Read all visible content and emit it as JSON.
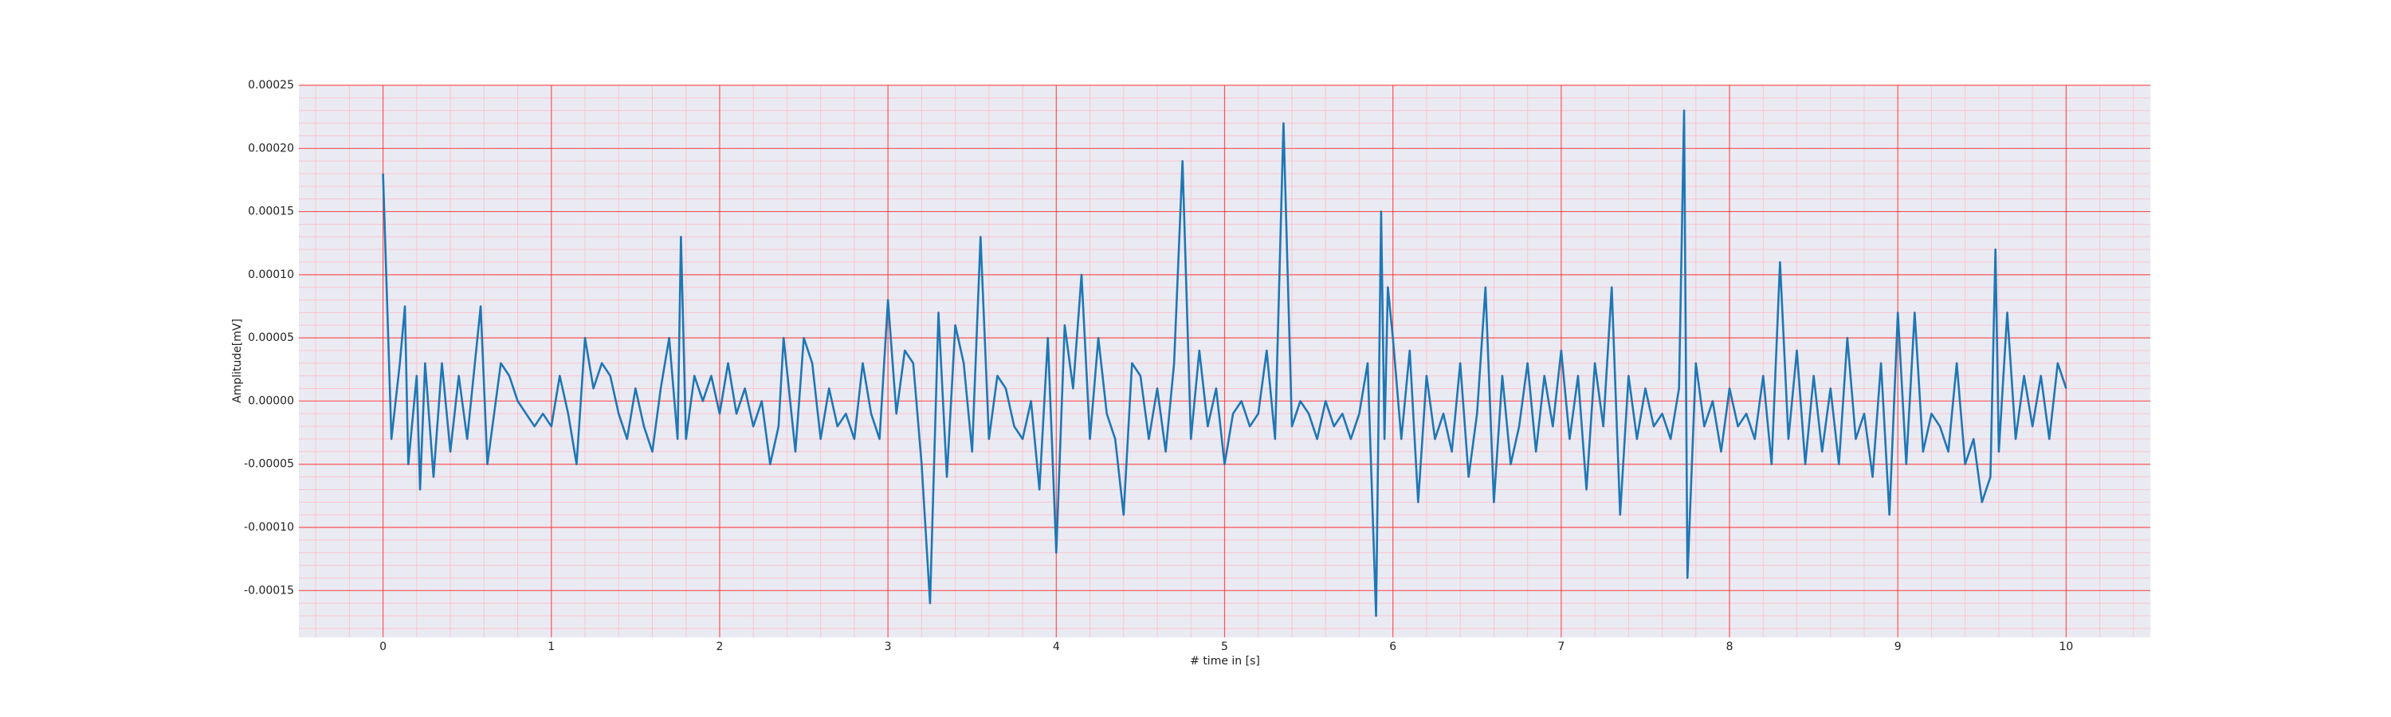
{
  "chart_data": {
    "type": "line",
    "xlabel": "# time in [s]",
    "ylabel": "Amplitude[mV]",
    "color": "#1f77b4",
    "grid": true,
    "minor_grid": true,
    "xlim": [
      -0.5,
      10.5
    ],
    "xticks": [
      0,
      1,
      2,
      3,
      4,
      5,
      6,
      7,
      8,
      9,
      10
    ],
    "ylim": [
      -0.000187,
      0.00025
    ],
    "yticks": [
      {
        "value": -0.00015,
        "label": "-0.00015"
      },
      {
        "value": -0.0001,
        "label": "-0.00010"
      },
      {
        "value": -5e-05,
        "label": "-0.00005"
      },
      {
        "value": 0,
        "label": "0.00000"
      },
      {
        "value": 5e-05,
        "label": "0.00005"
      },
      {
        "value": 0.0001,
        "label": "0.00010"
      },
      {
        "value": 0.00015,
        "label": "0.00015"
      },
      {
        "value": 0.0002,
        "label": "0.00020"
      },
      {
        "value": 0.00025,
        "label": "0.00025"
      }
    ],
    "x": [
      0,
      0.05,
      0.1,
      0.13,
      0.15,
      0.2,
      0.22,
      0.25,
      0.3,
      0.35,
      0.4,
      0.45,
      0.5,
      0.58,
      0.62,
      0.7,
      0.75,
      0.8,
      0.85,
      0.9,
      0.95,
      1.0,
      1.05,
      1.1,
      1.15,
      1.2,
      1.25,
      1.3,
      1.35,
      1.4,
      1.45,
      1.5,
      1.55,
      1.6,
      1.65,
      1.7,
      1.75,
      1.77,
      1.8,
      1.85,
      1.9,
      1.95,
      2.0,
      2.05,
      2.1,
      2.15,
      2.2,
      2.25,
      2.3,
      2.35,
      2.38,
      2.45,
      2.5,
      2.55,
      2.6,
      2.65,
      2.7,
      2.75,
      2.8,
      2.85,
      2.9,
      2.95,
      3.0,
      3.05,
      3.1,
      3.15,
      3.2,
      3.25,
      3.3,
      3.35,
      3.4,
      3.45,
      3.5,
      3.55,
      3.6,
      3.65,
      3.7,
      3.75,
      3.8,
      3.85,
      3.9,
      3.95,
      4.0,
      4.05,
      4.1,
      4.15,
      4.2,
      4.25,
      4.3,
      4.35,
      4.4,
      4.45,
      4.5,
      4.55,
      4.6,
      4.65,
      4.7,
      4.75,
      4.8,
      4.85,
      4.9,
      4.95,
      5.0,
      5.05,
      5.1,
      5.15,
      5.2,
      5.25,
      5.3,
      5.35,
      5.4,
      5.45,
      5.5,
      5.55,
      5.6,
      5.65,
      5.7,
      5.75,
      5.8,
      5.85,
      5.9,
      5.93,
      5.95,
      5.97,
      6.0,
      6.05,
      6.1,
      6.15,
      6.2,
      6.25,
      6.3,
      6.35,
      6.4,
      6.45,
      6.5,
      6.55,
      6.6,
      6.65,
      6.7,
      6.75,
      6.8,
      6.85,
      6.9,
      6.95,
      7.0,
      7.05,
      7.1,
      7.15,
      7.2,
      7.25,
      7.3,
      7.35,
      7.4,
      7.45,
      7.5,
      7.55,
      7.6,
      7.65,
      7.7,
      7.73,
      7.75,
      7.8,
      7.85,
      7.9,
      7.95,
      8.0,
      8.05,
      8.1,
      8.15,
      8.2,
      8.25,
      8.3,
      8.35,
      8.4,
      8.45,
      8.5,
      8.55,
      8.6,
      8.65,
      8.7,
      8.75,
      8.8,
      8.85,
      8.9,
      8.95,
      9.0,
      9.05,
      9.1,
      9.15,
      9.2,
      9.25,
      9.3,
      9.35,
      9.4,
      9.45,
      9.5,
      9.55,
      9.58,
      9.6,
      9.65,
      9.7,
      9.75,
      9.8,
      9.85,
      9.9,
      9.95,
      10.0
    ],
    "values": [
      0.00018,
      -3e-05,
      3e-05,
      7.5e-05,
      -5e-05,
      2e-05,
      -7e-05,
      3e-05,
      -6e-05,
      3e-05,
      -4e-05,
      2e-05,
      -3e-05,
      7.5e-05,
      -5e-05,
      3e-05,
      2e-05,
      0,
      -1e-05,
      -2e-05,
      -1e-05,
      -2e-05,
      2e-05,
      -1e-05,
      -5e-05,
      5e-05,
      1e-05,
      3e-05,
      2e-05,
      -1e-05,
      -3e-05,
      1e-05,
      -2e-05,
      -4e-05,
      1e-05,
      5e-05,
      -3e-05,
      0.00013,
      -3e-05,
      2e-05,
      0,
      2e-05,
      -1e-05,
      3e-05,
      -1e-05,
      1e-05,
      -2e-05,
      0,
      -5e-05,
      -2e-05,
      5e-05,
      -4e-05,
      5e-05,
      3e-05,
      -3e-05,
      1e-05,
      -2e-05,
      -1e-05,
      -3e-05,
      3e-05,
      -1e-05,
      -3e-05,
      8e-05,
      -1e-05,
      4e-05,
      3e-05,
      -5e-05,
      -0.00016,
      7e-05,
      -6e-05,
      6e-05,
      3e-05,
      -4e-05,
      0.00013,
      -3e-05,
      2e-05,
      1e-05,
      -2e-05,
      -3e-05,
      0,
      -7e-05,
      5e-05,
      -0.00012,
      6e-05,
      1e-05,
      0.0001,
      -3e-05,
      5e-05,
      -1e-05,
      -3e-05,
      -9e-05,
      3e-05,
      2e-05,
      -3e-05,
      1e-05,
      -4e-05,
      3e-05,
      0.00019,
      -3e-05,
      4e-05,
      -2e-05,
      1e-05,
      -5e-05,
      -1e-05,
      0,
      -2e-05,
      -1e-05,
      4e-05,
      -3e-05,
      0.00022,
      -2e-05,
      0,
      -1e-05,
      -3e-05,
      0,
      -2e-05,
      -1e-05,
      -3e-05,
      -1e-05,
      3e-05,
      -0.00017,
      0.00015,
      -3e-05,
      9e-05,
      5e-05,
      -3e-05,
      4e-05,
      -8e-05,
      2e-05,
      -3e-05,
      -1e-05,
      -4e-05,
      3e-05,
      -6e-05,
      -1e-05,
      9e-05,
      -8e-05,
      2e-05,
      -5e-05,
      -2e-05,
      3e-05,
      -4e-05,
      2e-05,
      -2e-05,
      4e-05,
      -3e-05,
      2e-05,
      -7e-05,
      3e-05,
      -2e-05,
      9e-05,
      -9e-05,
      2e-05,
      -3e-05,
      1e-05,
      -2e-05,
      -1e-05,
      -3e-05,
      1e-05,
      0.00023,
      -0.00014,
      3e-05,
      -2e-05,
      0,
      -4e-05,
      1e-05,
      -2e-05,
      -1e-05,
      -3e-05,
      2e-05,
      -5e-05,
      0.00011,
      -3e-05,
      4e-05,
      -5e-05,
      2e-05,
      -4e-05,
      1e-05,
      -5e-05,
      5e-05,
      -3e-05,
      -1e-05,
      -6e-05,
      3e-05,
      -9e-05,
      7e-05,
      -5e-05,
      7e-05,
      -4e-05,
      -1e-05,
      -2e-05,
      -4e-05,
      3e-05,
      -5e-05,
      -3e-05,
      -8e-05,
      -6e-05,
      0.00012,
      -4e-05,
      7e-05,
      -3e-05,
      2e-05,
      -2e-05,
      2e-05,
      -3e-05,
      3e-05,
      1e-05
    ]
  }
}
